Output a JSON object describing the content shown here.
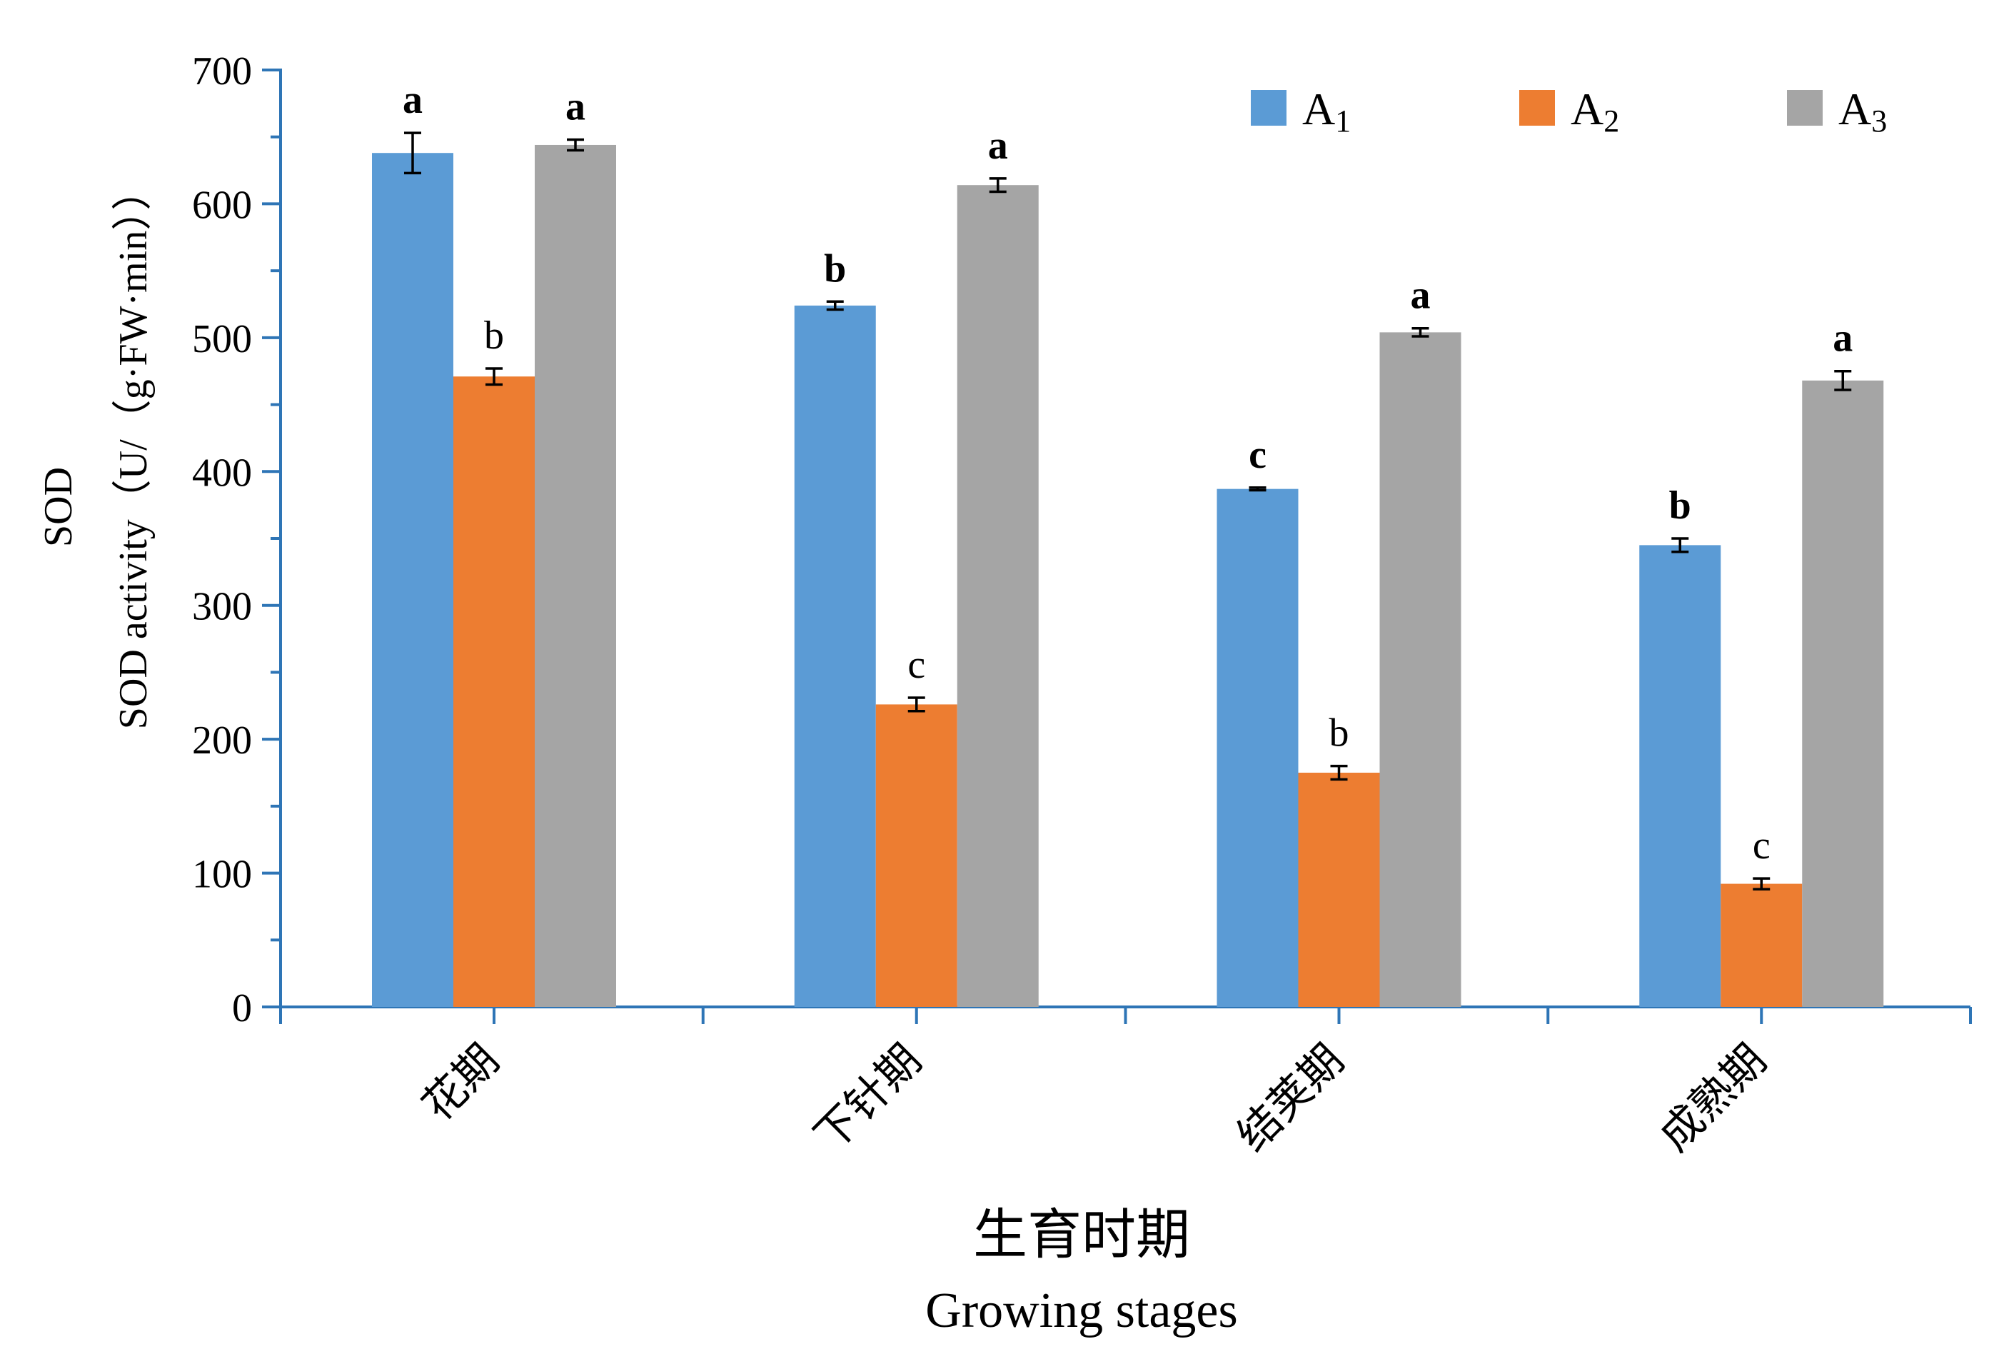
{
  "chart_data": {
    "type": "bar",
    "categories": [
      "花期",
      "下针期",
      "结荚期",
      "成熟期"
    ],
    "series": [
      {
        "name": "A",
        "subscript": "1",
        "color": "#5b9bd5",
        "values": [
          638,
          524,
          387,
          345
        ],
        "errors": [
          15,
          3,
          1,
          5
        ],
        "letters": [
          "a",
          "b",
          "c",
          "b"
        ]
      },
      {
        "name": "A",
        "subscript": "2",
        "color": "#ed7d31",
        "values": [
          471,
          226,
          175,
          92
        ],
        "errors": [
          6,
          5,
          5,
          4
        ],
        "letters": [
          "b",
          "c",
          "b",
          "c"
        ]
      },
      {
        "name": "A",
        "subscript": "3",
        "color": "#a5a5a5",
        "values": [
          644,
          614,
          504,
          468
        ],
        "errors": [
          4,
          5,
          3,
          7
        ],
        "letters": [
          "a",
          "a",
          "a",
          "a"
        ]
      }
    ],
    "ylim": [
      0,
      700
    ],
    "yticks": [
      0,
      100,
      200,
      300,
      400,
      500,
      600,
      700
    ],
    "ylabel_cn": "SOD",
    "ylabel_en": "SOD activity（U/（g·FW·min））",
    "xlabel_cn": "生育时期",
    "xlabel_en": "Growing stages",
    "legend_position": "top-right",
    "axis_color": "#2e75b6",
    "grid": false
  }
}
